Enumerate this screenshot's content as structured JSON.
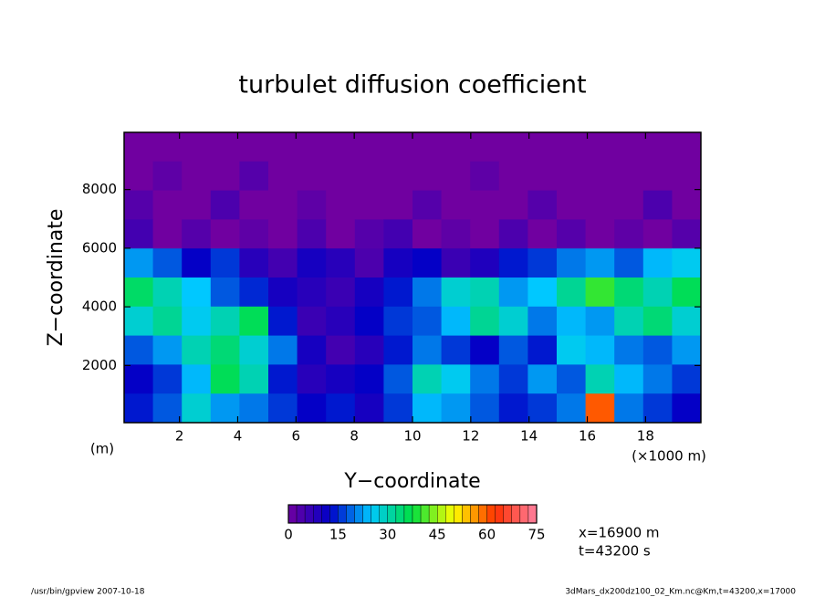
{
  "chart_data": {
    "type": "heatmap",
    "title": "turbulet diffusion coefficient",
    "x_label": "Y−coordinate",
    "y_label": "Z−coordinate",
    "x_unit": "(×1000 m)",
    "y_unit": "(m)",
    "xlim": [
      0.1,
      19.9
    ],
    "xticks": [
      2,
      4,
      6,
      8,
      10,
      12,
      14,
      16,
      18
    ],
    "ylim": [
      50,
      9950
    ],
    "yticks": [
      2000,
      4000,
      6000,
      8000
    ],
    "zlim": [
      0,
      75
    ],
    "zticks": [
      0,
      15,
      30,
      45,
      60,
      75
    ],
    "colorscale": [
      "#7000a0",
      "#0000c8",
      "#00c8ff",
      "#00e040",
      "#ffff00",
      "#ff3000",
      "#ff80a0"
    ],
    "values": [
      [
        0,
        0,
        0,
        0,
        0,
        0,
        0,
        0,
        0,
        0,
        0,
        0,
        0,
        0,
        0,
        0,
        0,
        0,
        0,
        0
      ],
      [
        0,
        2,
        0,
        0,
        3,
        0,
        0,
        0,
        0,
        0,
        0,
        0,
        2,
        0,
        0,
        0,
        0,
        0,
        0,
        0
      ],
      [
        3,
        0,
        0,
        4,
        0,
        0,
        2,
        0,
        0,
        0,
        3,
        0,
        0,
        0,
        3,
        0,
        0,
        0,
        4,
        0
      ],
      [
        5,
        0,
        3,
        0,
        2,
        0,
        4,
        0,
        3,
        5,
        0,
        2,
        0,
        4,
        0,
        3,
        0,
        2,
        0,
        3
      ],
      [
        22,
        18,
        12,
        16,
        8,
        5,
        10,
        8,
        4,
        10,
        12,
        6,
        9,
        14,
        16,
        20,
        22,
        18,
        24,
        26
      ],
      [
        35,
        30,
        25,
        18,
        15,
        10,
        8,
        6,
        10,
        14,
        20,
        28,
        30,
        22,
        25,
        32,
        40,
        34,
        30,
        36
      ],
      [
        28,
        32,
        26,
        30,
        36,
        14,
        6,
        8,
        12,
        16,
        18,
        24,
        32,
        28,
        20,
        24,
        22,
        30,
        34,
        28
      ],
      [
        18,
        22,
        30,
        34,
        28,
        20,
        10,
        5,
        8,
        14,
        20,
        16,
        12,
        18,
        14,
        26,
        24,
        20,
        18,
        22
      ],
      [
        12,
        16,
        24,
        36,
        30,
        14,
        8,
        10,
        12,
        18,
        30,
        26,
        20,
        16,
        22,
        18,
        30,
        24,
        20,
        16
      ],
      [
        14,
        18,
        28,
        22,
        20,
        16,
        12,
        14,
        10,
        16,
        24,
        22,
        18,
        14,
        16,
        20,
        60,
        20,
        16,
        12
      ]
    ],
    "annotations": [
      "x=16900 m",
      "t=43200 s"
    ],
    "footer_left": "/usr/bin/gpview   2007-10-18",
    "footer_right": "3dMars_dx200dz100_02_Km.nc@Km,t=43200,x=17000"
  }
}
